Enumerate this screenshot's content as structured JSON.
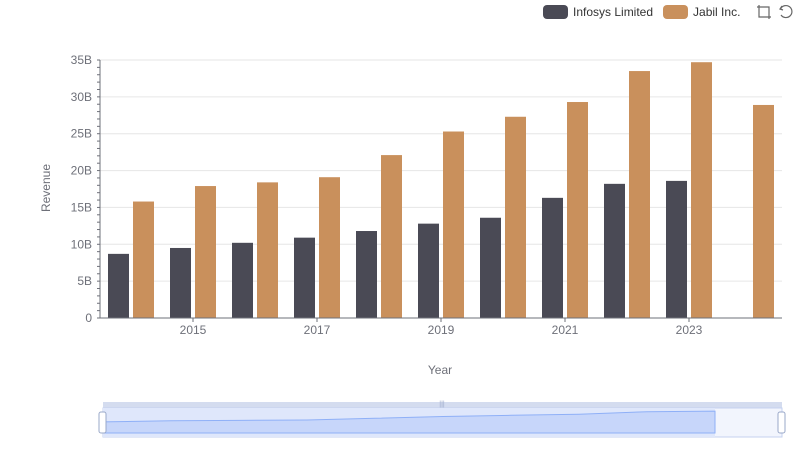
{
  "chart_data": {
    "type": "bar",
    "title": "",
    "xlabel": "Year",
    "ylabel": "Revenue",
    "categories": [
      "2014",
      "2015",
      "2016",
      "2017",
      "2018",
      "2019",
      "2020",
      "2021",
      "2022",
      "2023",
      "2024"
    ],
    "x_tick_labels": [
      "2015",
      "2017",
      "2019",
      "2021",
      "2023"
    ],
    "y_tick_labels": [
      "0",
      "5B",
      "10B",
      "15B",
      "20B",
      "25B",
      "30B",
      "35B"
    ],
    "ylim": [
      0,
      35
    ],
    "y_unit": "B",
    "grid": true,
    "legend_position": "top-right",
    "series": [
      {
        "name": "Infosys Limited",
        "color": "#4a4a55",
        "values": [
          8.7,
          9.5,
          10.2,
          10.9,
          11.8,
          12.8,
          13.6,
          16.3,
          18.2,
          18.6,
          null
        ]
      },
      {
        "name": "Jabil Inc.",
        "color": "#c9905c",
        "values": [
          15.8,
          17.9,
          18.4,
          19.1,
          22.1,
          25.3,
          27.3,
          29.3,
          33.5,
          34.7,
          28.9
        ]
      }
    ]
  },
  "toolbox": {
    "zoom_icon": "zoom-select-icon",
    "restore_icon": "restore-icon"
  },
  "colors": {
    "grid": "#e6e6e6",
    "axis": "#6e7079",
    "slider_fill": "#dfe7fb",
    "slider_border": "#c5d1ef",
    "slider_line": "#8fb0f7"
  }
}
